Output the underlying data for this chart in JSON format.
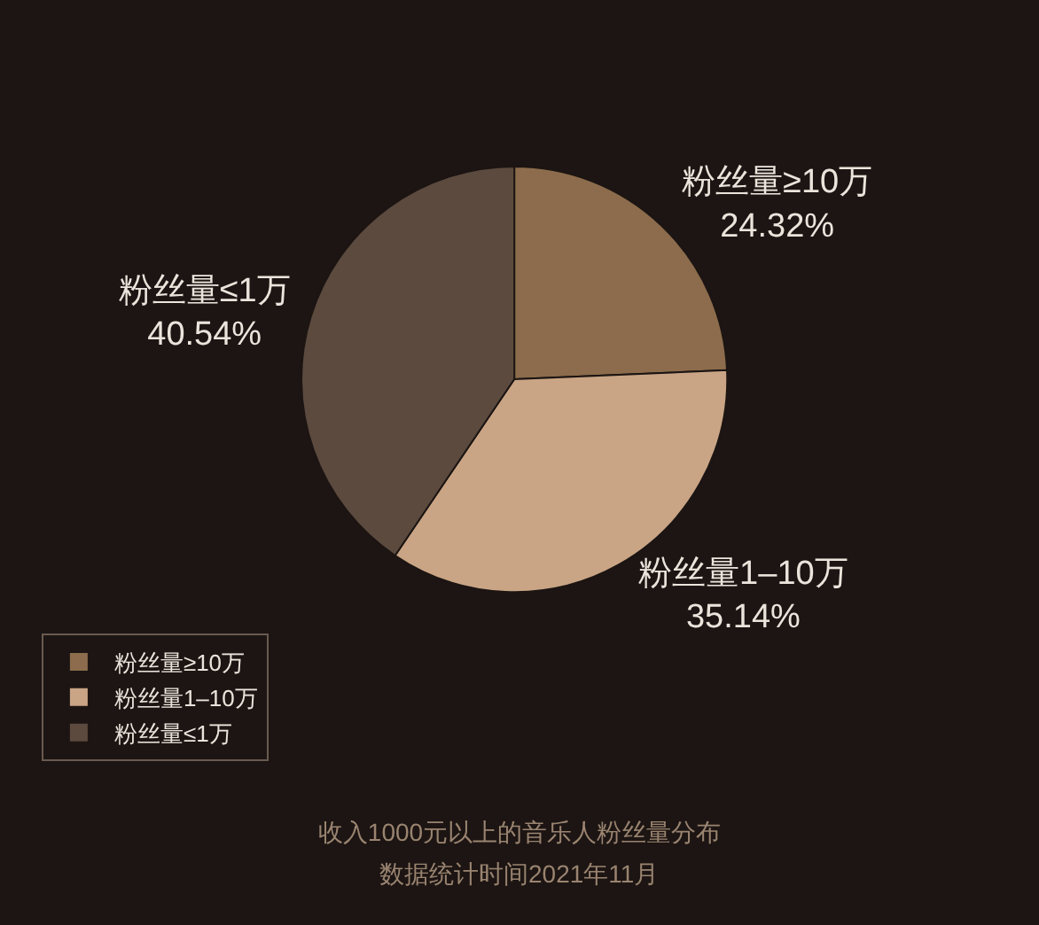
{
  "chart_data": {
    "type": "pie",
    "title": "收入1000元以上的音乐人粉丝量分布",
    "subtitle": "数据统计时间2021年11月",
    "categories": [
      "粉丝量≥10万",
      "粉丝量1–10万",
      "粉丝量≤1万"
    ],
    "values": [
      24.32,
      35.14,
      40.54
    ],
    "value_labels": [
      "24.32%",
      "35.14%",
      "40.54%"
    ],
    "colors": [
      "#8c6c4c",
      "#c9a585",
      "#5c4a3e"
    ],
    "legend": "bottom left"
  }
}
